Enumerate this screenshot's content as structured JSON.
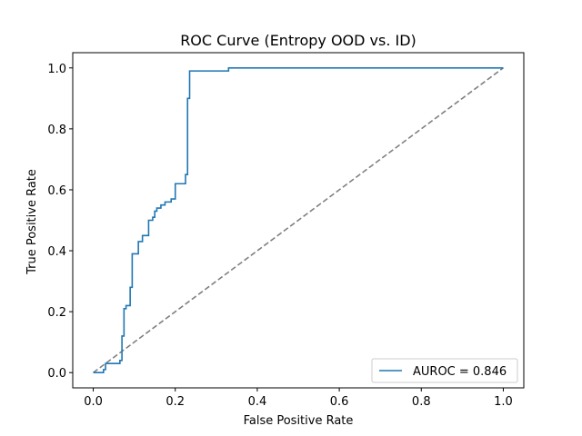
{
  "chart_data": {
    "type": "line",
    "title": "ROC Curve (Entropy OOD vs. ID)",
    "xlabel": "False Positive Rate",
    "ylabel": "True Positive Rate",
    "xlim": [
      -0.05,
      1.05
    ],
    "ylim": [
      -0.05,
      1.05
    ],
    "x_ticks": [
      0.0,
      0.2,
      0.4,
      0.6,
      0.8,
      1.0
    ],
    "y_ticks": [
      0.0,
      0.2,
      0.4,
      0.6,
      0.8,
      1.0
    ],
    "x_tick_labels": [
      "0.0",
      "0.2",
      "0.4",
      "0.6",
      "0.8",
      "1.0"
    ],
    "y_tick_labels": [
      "0.0",
      "0.2",
      "0.4",
      "0.6",
      "0.8",
      "1.0"
    ],
    "grid": false,
    "legend_position": "lower-right",
    "series": [
      {
        "name": "AUROC = 0.846",
        "color": "#1f77b4",
        "style": "solid",
        "x": [
          0.0,
          0.025,
          0.025,
          0.03,
          0.03,
          0.065,
          0.065,
          0.07,
          0.07,
          0.075,
          0.075,
          0.08,
          0.08,
          0.09,
          0.09,
          0.095,
          0.095,
          0.11,
          0.11,
          0.12,
          0.12,
          0.135,
          0.135,
          0.145,
          0.145,
          0.15,
          0.15,
          0.155,
          0.155,
          0.165,
          0.165,
          0.175,
          0.175,
          0.19,
          0.19,
          0.2,
          0.2,
          0.21,
          0.21,
          0.225,
          0.225,
          0.23,
          0.23,
          0.235,
          0.235,
          0.33,
          0.33,
          1.0
        ],
        "y": [
          0.0,
          0.0,
          0.01,
          0.01,
          0.03,
          0.03,
          0.04,
          0.04,
          0.12,
          0.12,
          0.21,
          0.21,
          0.22,
          0.22,
          0.28,
          0.28,
          0.39,
          0.39,
          0.43,
          0.43,
          0.45,
          0.45,
          0.5,
          0.5,
          0.51,
          0.51,
          0.53,
          0.53,
          0.54,
          0.54,
          0.55,
          0.55,
          0.56,
          0.56,
          0.57,
          0.57,
          0.62,
          0.62,
          0.62,
          0.62,
          0.65,
          0.65,
          0.9,
          0.9,
          0.99,
          0.99,
          1.0,
          1.0
        ]
      },
      {
        "name": "",
        "color": "#808080",
        "style": "dashed",
        "x": [
          0.0,
          1.0
        ],
        "y": [
          0.0,
          1.0
        ]
      }
    ],
    "legend_entries": [
      "AUROC = 0.846"
    ]
  }
}
